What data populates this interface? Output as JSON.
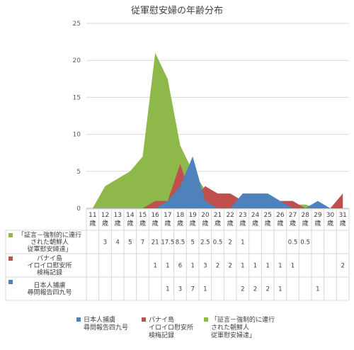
{
  "chart_data": {
    "type": "area",
    "title": "従軍慰安婦の年齢分布",
    "ylim": [
      0,
      25
    ],
    "yticks": [
      0,
      5,
      10,
      15,
      20,
      25
    ],
    "categories": [
      "11\n歳",
      "12\n歳",
      "13\n歳",
      "14\n歳",
      "15\n歳",
      "16\n歳",
      "17\n歳",
      "18\n歳",
      "19\n歳",
      "20\n歳",
      "21\n歳",
      "22\n歳",
      "23\n歳",
      "24\n歳",
      "25\n歳",
      "26\n歳",
      "27\n歳",
      "28\n歳",
      "29\n歳",
      "30\n歳",
      "31\n歳"
    ],
    "series": [
      {
        "name": "「証言－強制的に連行\nされた朝鮮人\n従軍慰安婦達」",
        "color": "#8fb84a",
        "values": [
          null,
          3,
          4,
          5,
          7,
          21,
          17.5,
          8.5,
          5,
          2.5,
          0.5,
          2,
          1,
          null,
          null,
          null,
          0.5,
          0.5,
          null,
          null,
          null
        ]
      },
      {
        "name": "パナイ島\nイロイロ慰安所\n検梅記録",
        "color": "#c0504d",
        "values": [
          null,
          null,
          null,
          null,
          null,
          1,
          1,
          6,
          1,
          3,
          2,
          2,
          1,
          1,
          1,
          1,
          1,
          null,
          null,
          null,
          2
        ]
      },
      {
        "name": "日本人捕虜\n尋問報告四九号",
        "color": "#4f81bd",
        "values": [
          null,
          null,
          null,
          null,
          null,
          null,
          1,
          3,
          7,
          1,
          null,
          null,
          2,
          2,
          2,
          1,
          null,
          null,
          1,
          null,
          null
        ]
      }
    ]
  }
}
